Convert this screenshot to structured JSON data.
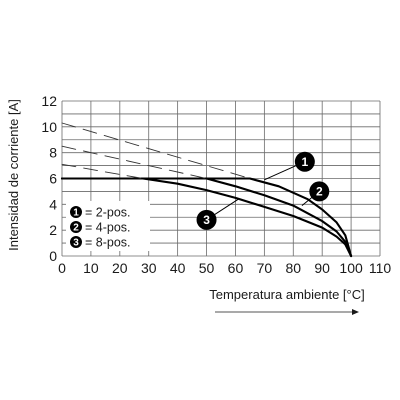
{
  "chart_data": {
    "type": "line",
    "xlabel": "Temperatura ambiente [°C]",
    "ylabel": "Intensidad de corriente [A]",
    "xlim": [
      0,
      110
    ],
    "ylim": [
      0,
      12
    ],
    "xticks": [
      0,
      10,
      20,
      30,
      40,
      50,
      60,
      70,
      80,
      90,
      100,
      110
    ],
    "yticks": [
      0,
      2,
      4,
      6,
      8,
      10,
      12
    ],
    "grid": true,
    "legend_position": "bottom-left",
    "legend": [
      {
        "marker": "1",
        "label": "= 2-pos."
      },
      {
        "marker": "2",
        "label": "= 4-pos."
      },
      {
        "marker": "3",
        "label": "= 8-pos."
      }
    ],
    "series": [
      {
        "marker": "1",
        "line_style": "solid",
        "x": [
          0,
          65,
          75,
          85,
          90,
          95,
          98,
          100
        ],
        "y": [
          6,
          6,
          5.4,
          4.4,
          3.6,
          2.6,
          1.6,
          0
        ]
      },
      {
        "marker": "2",
        "line_style": "solid",
        "x": [
          0,
          50,
          60,
          70,
          80,
          90,
          95,
          98,
          100
        ],
        "y": [
          6,
          6,
          5.4,
          4.7,
          3.9,
          2.7,
          1.9,
          1.1,
          0
        ]
      },
      {
        "marker": "3",
        "line_style": "solid",
        "x": [
          0,
          28,
          40,
          50,
          60,
          70,
          80,
          90,
          95,
          98,
          100
        ],
        "y": [
          6,
          6,
          5.6,
          5.1,
          4.5,
          3.8,
          3.1,
          2.2,
          1.5,
          0.9,
          0
        ]
      },
      {
        "marker": "1",
        "line_style": "dashed",
        "x": [
          0,
          65
        ],
        "y": [
          10.3,
          6
        ]
      },
      {
        "marker": "2",
        "line_style": "dashed",
        "x": [
          0,
          50
        ],
        "y": [
          8.5,
          6
        ]
      },
      {
        "marker": "3",
        "line_style": "dashed",
        "x": [
          0,
          28
        ],
        "y": [
          7.1,
          6
        ]
      }
    ],
    "callouts": [
      {
        "marker": "1",
        "at": [
          70,
          5.9
        ],
        "label_at": [
          84,
          7.3
        ]
      },
      {
        "marker": "2",
        "at": [
          83,
          3.9
        ],
        "label_at": [
          89,
          5.0
        ]
      },
      {
        "marker": "3",
        "at": [
          61,
          4.4
        ],
        "label_at": [
          50,
          2.8
        ]
      }
    ]
  }
}
